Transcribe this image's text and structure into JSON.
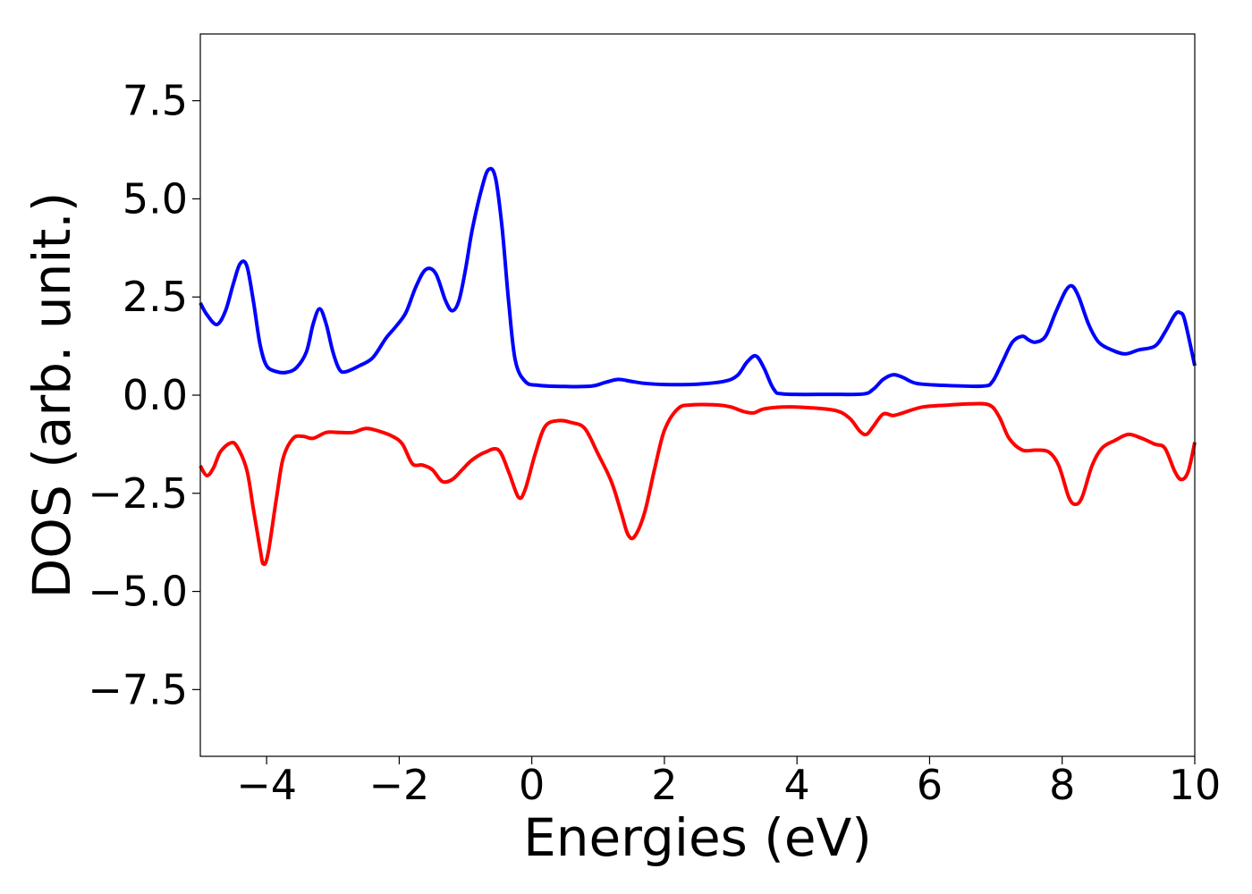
{
  "chart_data": {
    "type": "line",
    "xlabel": "Energies (eV)",
    "ylabel": "DOS (arb. unit.)",
    "xlim": [
      -5,
      10
    ],
    "ylim": [
      -9.2,
      9.2
    ],
    "xticks": [
      -4,
      -2,
      0,
      2,
      4,
      6,
      8,
      10
    ],
    "xtick_labels": [
      "−4",
      "−2",
      "0",
      "2",
      "4",
      "6",
      "8",
      "10"
    ],
    "yticks": [
      7.5,
      5.0,
      2.5,
      0.0,
      -2.5,
      -5.0,
      -7.5
    ],
    "ytick_labels": [
      "7.5",
      "5.0",
      "2.5",
      "0.0",
      "−2.5",
      "−5.0",
      "−7.5"
    ],
    "grid": false,
    "legend": "none",
    "series": [
      {
        "color": "#0000ff",
        "points": [
          [
            -5.0,
            2.35
          ],
          [
            -4.9,
            2.05
          ],
          [
            -4.75,
            1.8
          ],
          [
            -4.62,
            2.15
          ],
          [
            -4.5,
            2.85
          ],
          [
            -4.4,
            3.35
          ],
          [
            -4.3,
            3.3
          ],
          [
            -4.2,
            2.4
          ],
          [
            -4.1,
            1.3
          ],
          [
            -4.0,
            0.75
          ],
          [
            -3.85,
            0.6
          ],
          [
            -3.7,
            0.58
          ],
          [
            -3.55,
            0.7
          ],
          [
            -3.4,
            1.1
          ],
          [
            -3.3,
            1.8
          ],
          [
            -3.2,
            2.2
          ],
          [
            -3.1,
            1.8
          ],
          [
            -3.0,
            1.1
          ],
          [
            -2.9,
            0.65
          ],
          [
            -2.8,
            0.6
          ],
          [
            -2.6,
            0.75
          ],
          [
            -2.4,
            0.95
          ],
          [
            -2.2,
            1.45
          ],
          [
            -2.05,
            1.75
          ],
          [
            -1.9,
            2.1
          ],
          [
            -1.75,
            2.75
          ],
          [
            -1.6,
            3.2
          ],
          [
            -1.45,
            3.1
          ],
          [
            -1.3,
            2.4
          ],
          [
            -1.2,
            2.15
          ],
          [
            -1.1,
            2.4
          ],
          [
            -1.0,
            3.2
          ],
          [
            -0.9,
            4.2
          ],
          [
            -0.75,
            5.3
          ],
          [
            -0.65,
            5.75
          ],
          [
            -0.55,
            5.55
          ],
          [
            -0.45,
            4.3
          ],
          [
            -0.35,
            2.4
          ],
          [
            -0.25,
            0.9
          ],
          [
            -0.1,
            0.35
          ],
          [
            0.1,
            0.25
          ],
          [
            0.5,
            0.22
          ],
          [
            0.9,
            0.23
          ],
          [
            1.1,
            0.32
          ],
          [
            1.3,
            0.4
          ],
          [
            1.5,
            0.35
          ],
          [
            1.7,
            0.3
          ],
          [
            2.0,
            0.27
          ],
          [
            2.5,
            0.28
          ],
          [
            2.9,
            0.35
          ],
          [
            3.1,
            0.5
          ],
          [
            3.25,
            0.85
          ],
          [
            3.38,
            1.0
          ],
          [
            3.5,
            0.7
          ],
          [
            3.65,
            0.15
          ],
          [
            3.8,
            0.03
          ],
          [
            4.5,
            0.02
          ],
          [
            5.0,
            0.03
          ],
          [
            5.15,
            0.15
          ],
          [
            5.3,
            0.4
          ],
          [
            5.45,
            0.52
          ],
          [
            5.6,
            0.45
          ],
          [
            5.8,
            0.3
          ],
          [
            6.2,
            0.25
          ],
          [
            6.8,
            0.23
          ],
          [
            6.95,
            0.35
          ],
          [
            7.1,
            0.85
          ],
          [
            7.25,
            1.35
          ],
          [
            7.4,
            1.5
          ],
          [
            7.5,
            1.4
          ],
          [
            7.6,
            1.35
          ],
          [
            7.75,
            1.5
          ],
          [
            7.9,
            2.1
          ],
          [
            8.05,
            2.65
          ],
          [
            8.15,
            2.78
          ],
          [
            8.25,
            2.5
          ],
          [
            8.4,
            1.8
          ],
          [
            8.55,
            1.35
          ],
          [
            8.75,
            1.15
          ],
          [
            8.95,
            1.05
          ],
          [
            9.15,
            1.15
          ],
          [
            9.4,
            1.25
          ],
          [
            9.55,
            1.6
          ],
          [
            9.7,
            2.05
          ],
          [
            9.78,
            2.1
          ],
          [
            9.85,
            1.9
          ],
          [
            10.0,
            0.75
          ]
        ]
      },
      {
        "color": "#ff0000",
        "points": [
          [
            -5.0,
            -1.8
          ],
          [
            -4.9,
            -2.05
          ],
          [
            -4.8,
            -1.85
          ],
          [
            -4.7,
            -1.45
          ],
          [
            -4.55,
            -1.22
          ],
          [
            -4.45,
            -1.3
          ],
          [
            -4.3,
            -1.9
          ],
          [
            -4.2,
            -2.9
          ],
          [
            -4.1,
            -3.9
          ],
          [
            -4.05,
            -4.3
          ],
          [
            -3.98,
            -4.05
          ],
          [
            -3.85,
            -2.6
          ],
          [
            -3.75,
            -1.6
          ],
          [
            -3.6,
            -1.1
          ],
          [
            -3.45,
            -1.05
          ],
          [
            -3.3,
            -1.1
          ],
          [
            -3.1,
            -0.95
          ],
          [
            -2.9,
            -0.95
          ],
          [
            -2.7,
            -0.95
          ],
          [
            -2.5,
            -0.85
          ],
          [
            -2.3,
            -0.92
          ],
          [
            -2.1,
            -1.05
          ],
          [
            -1.95,
            -1.25
          ],
          [
            -1.8,
            -1.75
          ],
          [
            -1.65,
            -1.78
          ],
          [
            -1.5,
            -1.9
          ],
          [
            -1.35,
            -2.2
          ],
          [
            -1.2,
            -2.15
          ],
          [
            -1.05,
            -1.9
          ],
          [
            -0.9,
            -1.65
          ],
          [
            -0.7,
            -1.45
          ],
          [
            -0.5,
            -1.4
          ],
          [
            -0.35,
            -1.95
          ],
          [
            -0.2,
            -2.6
          ],
          [
            -0.1,
            -2.4
          ],
          [
            0.05,
            -1.5
          ],
          [
            0.2,
            -0.8
          ],
          [
            0.4,
            -0.65
          ],
          [
            0.6,
            -0.7
          ],
          [
            0.8,
            -0.85
          ],
          [
            1.0,
            -1.5
          ],
          [
            1.2,
            -2.2
          ],
          [
            1.35,
            -3.0
          ],
          [
            1.45,
            -3.55
          ],
          [
            1.55,
            -3.6
          ],
          [
            1.7,
            -3.0
          ],
          [
            1.85,
            -1.9
          ],
          [
            2.0,
            -0.9
          ],
          [
            2.2,
            -0.35
          ],
          [
            2.4,
            -0.25
          ],
          [
            2.8,
            -0.25
          ],
          [
            3.0,
            -0.3
          ],
          [
            3.2,
            -0.42
          ],
          [
            3.35,
            -0.45
          ],
          [
            3.5,
            -0.35
          ],
          [
            3.8,
            -0.3
          ],
          [
            4.2,
            -0.32
          ],
          [
            4.6,
            -0.4
          ],
          [
            4.8,
            -0.6
          ],
          [
            4.95,
            -0.92
          ],
          [
            5.05,
            -1.0
          ],
          [
            5.15,
            -0.8
          ],
          [
            5.3,
            -0.48
          ],
          [
            5.45,
            -0.52
          ],
          [
            5.6,
            -0.45
          ],
          [
            5.9,
            -0.3
          ],
          [
            6.3,
            -0.25
          ],
          [
            6.6,
            -0.22
          ],
          [
            6.9,
            -0.25
          ],
          [
            7.05,
            -0.55
          ],
          [
            7.2,
            -1.1
          ],
          [
            7.4,
            -1.4
          ],
          [
            7.6,
            -1.4
          ],
          [
            7.8,
            -1.45
          ],
          [
            7.95,
            -1.8
          ],
          [
            8.1,
            -2.6
          ],
          [
            8.2,
            -2.78
          ],
          [
            8.3,
            -2.6
          ],
          [
            8.45,
            -1.8
          ],
          [
            8.6,
            -1.35
          ],
          [
            8.8,
            -1.15
          ],
          [
            9.0,
            -1.0
          ],
          [
            9.2,
            -1.1
          ],
          [
            9.4,
            -1.25
          ],
          [
            9.55,
            -1.35
          ],
          [
            9.7,
            -1.95
          ],
          [
            9.8,
            -2.15
          ],
          [
            9.9,
            -1.95
          ],
          [
            10.0,
            -1.2
          ]
        ]
      }
    ]
  }
}
